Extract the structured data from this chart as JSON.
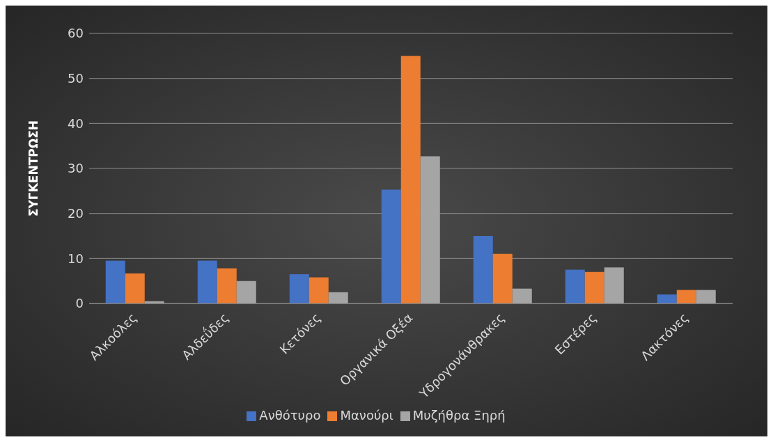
{
  "chart_data": {
    "type": "bar",
    "ylabel": "ΣΥΓΚΕΝΤΡΩΣΗ",
    "categories": [
      "Αλκοόλες",
      "Αλδεΰδες",
      "Κετόνες",
      "Οργανικά Οξέα",
      "Υδρογονάνθρακες",
      "Εστέρες",
      "Λακτόνες"
    ],
    "series": [
      {
        "name": "Ανθότυρο",
        "color": "#4472c4",
        "values": [
          9.5,
          9.5,
          6.5,
          25.3,
          15,
          7.5,
          2
        ]
      },
      {
        "name": "Μανούρι",
        "color": "#ed7d31",
        "values": [
          6.7,
          7.8,
          5.8,
          55,
          11,
          7,
          3
        ]
      },
      {
        "name": "Μυζήθρα Ξηρή",
        "color": "#a5a5a5",
        "values": [
          0.5,
          5,
          2.5,
          32.7,
          3.3,
          8,
          3
        ]
      }
    ],
    "ylim": [
      0,
      60
    ],
    "yticks": [
      0,
      10,
      20,
      30,
      40,
      50,
      60
    ],
    "grid": "y",
    "legend": "bottom"
  }
}
